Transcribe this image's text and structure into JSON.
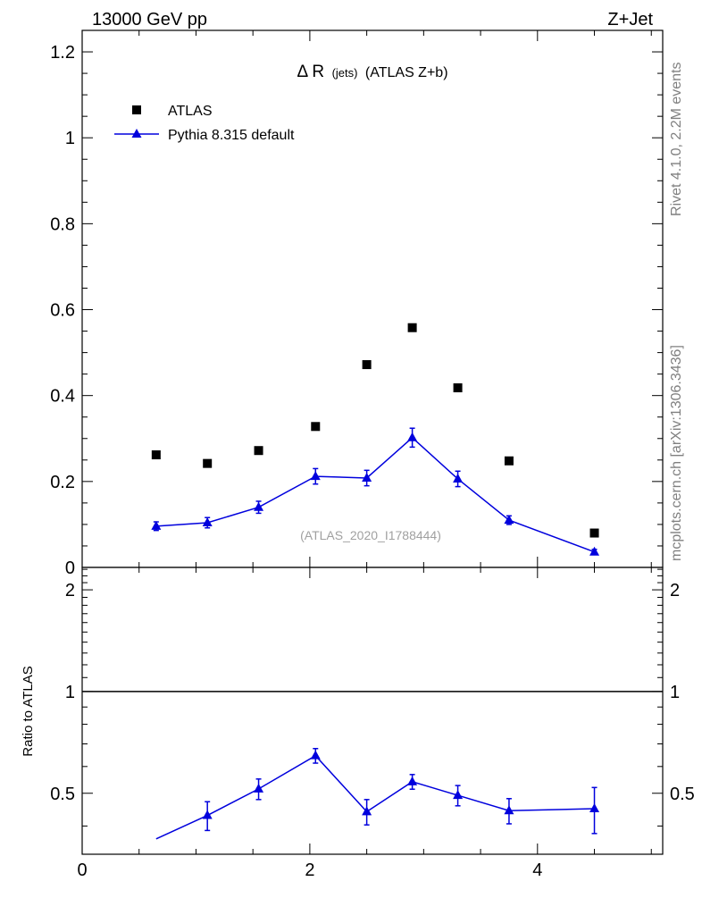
{
  "header": {
    "energy_label": "13000 GeV pp",
    "process_label": "Z+Jet"
  },
  "side": {
    "rivet_label": "Rivet 4.1.0,  2.2M events",
    "source_label": "mcplots.cern.ch [arXiv:1306.3436]"
  },
  "analysis_id": "(ATLAS_2020_I1788444)",
  "colors": {
    "data": "#000000",
    "mc": "#0000dd",
    "analysis_text": "#a0a0a0",
    "side_text": "#808080"
  },
  "chart_data": [
    {
      "type": "scatter",
      "panel": "main",
      "title_parts": {
        "symbol": "Δ R",
        "sub": "(jets)",
        "rest": "(ATLAS Z+b)"
      },
      "xlim": [
        0,
        5.1
      ],
      "ylim": [
        0,
        1.25
      ],
      "xlabel": "",
      "ylabel": "",
      "yticks": [
        0,
        0.2,
        0.4,
        0.6,
        0.8,
        1,
        1.2
      ],
      "ytick_labels": [
        "0",
        "0.2",
        "0.4",
        "0.6",
        "0.8",
        "1",
        "1.2"
      ],
      "legend": {
        "placement": "top-left",
        "entries": [
          "ATLAS",
          "Pythia 8.315 default"
        ]
      },
      "series": [
        {
          "name": "ATLAS",
          "style": "square-markers",
          "x": [
            0.65,
            1.1,
            1.55,
            2.05,
            2.5,
            2.9,
            3.3,
            3.75,
            4.5
          ],
          "y": [
            0.262,
            0.242,
            0.272,
            0.328,
            0.472,
            0.558,
            0.418,
            0.248,
            0.08
          ]
        },
        {
          "name": "Pythia 8.315 default",
          "style": "triangle-line",
          "x": [
            0.65,
            1.1,
            1.55,
            2.05,
            2.5,
            2.9,
            3.3,
            3.75,
            4.5
          ],
          "y": [
            0.096,
            0.104,
            0.14,
            0.212,
            0.208,
            0.302,
            0.206,
            0.11,
            0.036
          ],
          "yerr": [
            0.01,
            0.012,
            0.014,
            0.018,
            0.018,
            0.022,
            0.018,
            0.01,
            0.006
          ]
        }
      ]
    },
    {
      "type": "line",
      "panel": "ratio",
      "ylabel": "Ratio to ATLAS",
      "xlim": [
        0,
        5.1
      ],
      "ylim": [
        0.33,
        2.33
      ],
      "xticks": [
        0,
        2,
        4
      ],
      "xtick_labels": [
        "0",
        "2",
        "4"
      ],
      "yticks": [
        0.5,
        1,
        2
      ],
      "ytick_labels": [
        "0.5",
        "1",
        "2"
      ],
      "reference_line": 1,
      "series": [
        {
          "name": "Pythia 8.315 default / ATLAS",
          "x": [
            0.65,
            1.1,
            1.55,
            2.05,
            2.5,
            2.9,
            3.3,
            3.75,
            4.5
          ],
          "y": [
            0.3665,
            0.43,
            0.515,
            0.646,
            0.441,
            0.541,
            0.493,
            0.444,
            0.45
          ],
          "yerr": [
            0,
            0.042,
            0.036,
            0.032,
            0.038,
            0.027,
            0.034,
            0.038,
            0.07
          ],
          "marker": [
            false,
            true,
            true,
            true,
            true,
            true,
            true,
            true,
            true
          ]
        }
      ]
    }
  ]
}
